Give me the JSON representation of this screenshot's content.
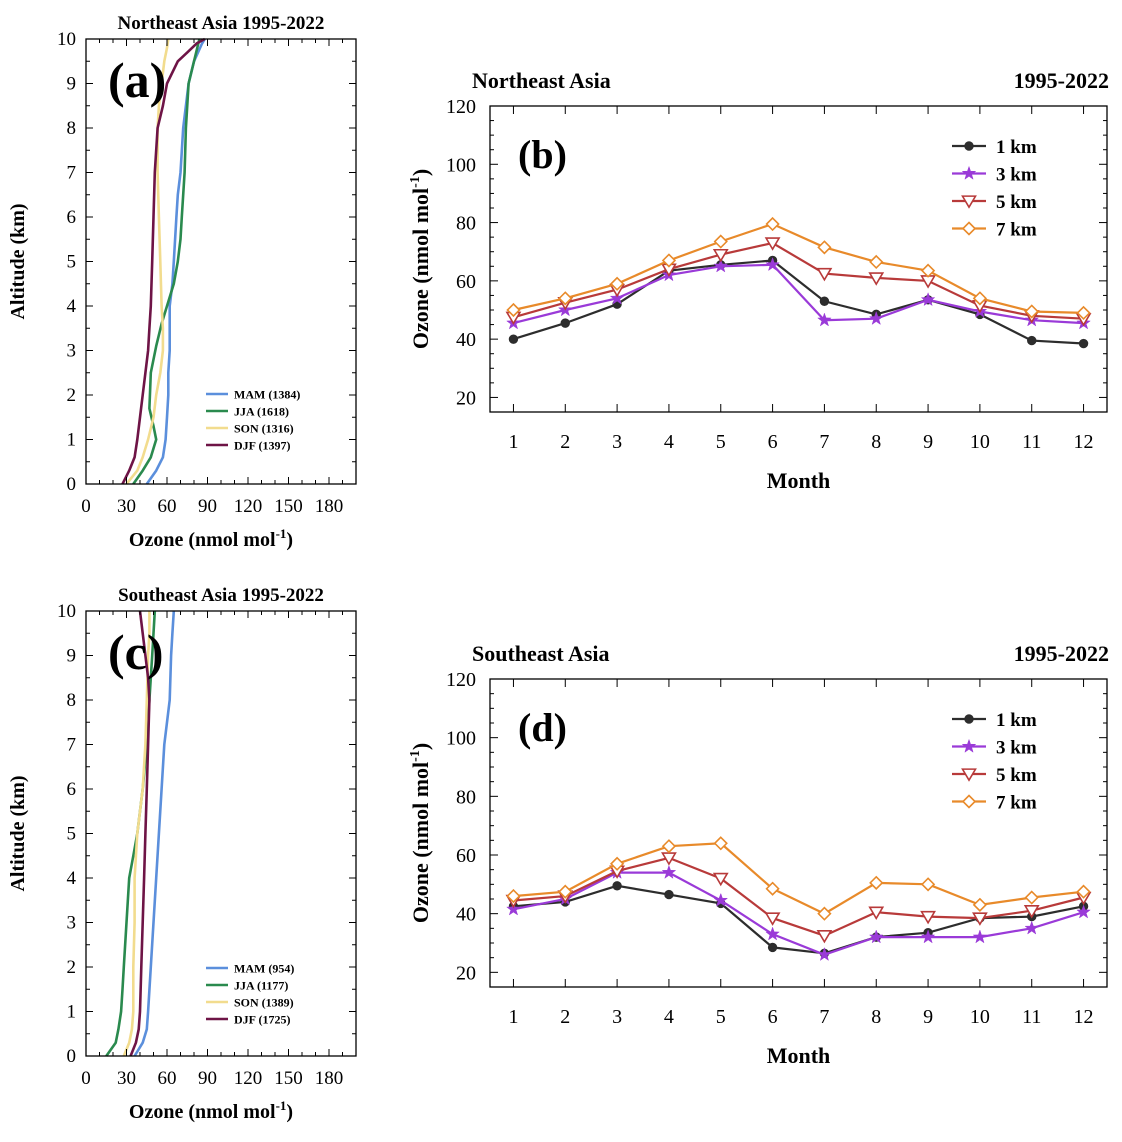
{
  "colors": {
    "MAM": "#5b8fdc",
    "JJA": "#2a8a4e",
    "SON": "#f2dc8e",
    "DJF": "#6e1446",
    "km1": "#2d2d2d",
    "km3": "#9a3ad8",
    "km5": "#b83a3a",
    "km7": "#e88a2a"
  },
  "chart_data": [
    {
      "id": "a",
      "type": "line",
      "panel_label": "(a)",
      "title": "Northeast Asia  1995-2022",
      "xlabel": "Ozone (nmol mol",
      "xlabel_sup": "-1",
      "xlabel_end": ")",
      "ylabel": "Altitude (km)",
      "xlim": [
        0,
        200
      ],
      "ylim": [
        0,
        10
      ],
      "xticks": [
        "0",
        "30",
        "60",
        "90",
        "120",
        "150",
        "180"
      ],
      "yticks": [
        "0",
        "1",
        "2",
        "3",
        "4",
        "5",
        "6",
        "7",
        "8",
        "9",
        "10"
      ],
      "legend_position": "bottom-right",
      "series": [
        {
          "key": "MAM",
          "name": "MAM (1384)",
          "x": [
            45,
            52,
            57,
            59,
            60,
            61,
            61,
            62,
            62,
            64,
            65,
            67,
            68,
            70,
            72,
            76,
            80,
            86,
            88
          ],
          "y": [
            0,
            0.3,
            0.6,
            1,
            1.5,
            2,
            2.5,
            3,
            4,
            4.5,
            5,
            6,
            6.5,
            7,
            8,
            9,
            9.5,
            9.9,
            10
          ]
        },
        {
          "key": "JJA",
          "name": "JJA (1618)",
          "x": [
            35,
            42,
            48,
            52,
            50,
            47,
            48,
            52,
            56,
            60,
            65,
            68,
            70,
            71,
            73,
            74,
            76,
            80,
            84
          ],
          "y": [
            0,
            0.3,
            0.6,
            1,
            1.3,
            1.7,
            2.5,
            3.1,
            3.6,
            4,
            4.5,
            5,
            5.5,
            6,
            7,
            8,
            9,
            9.5,
            10
          ]
        },
        {
          "key": "SON",
          "name": "SON (1316)",
          "x": [
            30,
            38,
            42,
            46,
            50,
            52,
            55,
            57,
            57,
            56,
            55,
            54,
            53,
            53,
            54,
            56,
            58,
            60,
            61
          ],
          "y": [
            0,
            0.3,
            0.6,
            1,
            1.5,
            2,
            2.5,
            3,
            3.5,
            4,
            5,
            6,
            7,
            8,
            8.5,
            9,
            9.5,
            9.8,
            10
          ]
        },
        {
          "key": "DJF",
          "name": "DJF (1397)",
          "x": [
            27,
            32,
            36,
            38,
            40,
            42,
            44,
            46,
            47,
            48,
            49,
            50,
            51,
            53,
            57,
            60,
            68,
            75,
            82,
            88
          ],
          "y": [
            0,
            0.3,
            0.6,
            1,
            1.5,
            2,
            2.5,
            3,
            3.5,
            4,
            5,
            6,
            7,
            8,
            8.5,
            9,
            9.5,
            9.7,
            9.9,
            10
          ]
        }
      ]
    },
    {
      "id": "c",
      "type": "line",
      "panel_label": "(c)",
      "title": "Southeast Asia  1995-2022",
      "xlabel": "Ozone (nmol mol",
      "xlabel_sup": "-1",
      "xlabel_end": ")",
      "ylabel": "Altitude (km)",
      "xlim": [
        0,
        200
      ],
      "ylim": [
        0,
        10
      ],
      "xticks": [
        "0",
        "30",
        "60",
        "90",
        "120",
        "150",
        "180"
      ],
      "yticks": [
        "0",
        "1",
        "2",
        "3",
        "4",
        "5",
        "6",
        "7",
        "8",
        "9",
        "10"
      ],
      "legend_position": "bottom-right",
      "series": [
        {
          "key": "MAM",
          "name": "MAM (954)",
          "x": [
            36,
            42,
            45,
            46,
            48,
            50,
            52,
            54,
            56,
            58,
            60,
            62,
            63,
            64,
            65
          ],
          "y": [
            0,
            0.3,
            0.6,
            1,
            2,
            3,
            4,
            5,
            6,
            7,
            7.5,
            8,
            9,
            9.5,
            10
          ]
        },
        {
          "key": "JJA",
          "name": "JJA (1177)",
          "x": [
            15,
            22,
            24,
            26,
            27,
            28,
            30,
            32,
            35,
            38,
            42,
            45,
            47,
            48,
            49,
            50,
            51
          ],
          "y": [
            0,
            0.3,
            0.6,
            1,
            1.5,
            2,
            3,
            4,
            4.5,
            5,
            6,
            7,
            8,
            8.5,
            9,
            9.5,
            10
          ]
        },
        {
          "key": "SON",
          "name": "SON (1389)",
          "x": [
            28,
            32,
            34,
            35,
            35,
            36,
            36,
            38,
            40,
            42,
            44,
            45,
            46,
            47,
            47
          ],
          "y": [
            0,
            0.3,
            0.6,
            1,
            2,
            3,
            4,
            5,
            5.5,
            6,
            7,
            8,
            9,
            9.5,
            10
          ]
        },
        {
          "key": "DJF",
          "name": "DJF (1725)",
          "x": [
            33,
            37,
            39,
            40,
            41,
            42,
            43,
            44,
            45,
            46,
            47,
            46,
            44,
            42,
            40
          ],
          "y": [
            0,
            0.3,
            0.6,
            1,
            2,
            3,
            4,
            5,
            6,
            7,
            8,
            8.5,
            9,
            9.5,
            10
          ]
        }
      ]
    },
    {
      "id": "b",
      "type": "line",
      "panel_label": "(b)",
      "title": "Northeast Asia",
      "title_right": "1995-2022",
      "xlabel": "Month",
      "ylabel": "Ozone (nmol mol",
      "ylabel_sup": "-1",
      "ylabel_end": ")",
      "categories": [
        "1",
        "2",
        "3",
        "4",
        "5",
        "6",
        "7",
        "8",
        "9",
        "10",
        "11",
        "12"
      ],
      "ylim": [
        15,
        120
      ],
      "yticks": [
        "20",
        "40",
        "60",
        "80",
        "100",
        "120"
      ],
      "legend_position": "top-right",
      "series": [
        {
          "key": "km1",
          "name": "1 km",
          "marker": "circle",
          "values": [
            40,
            45.5,
            52,
            63.5,
            65.5,
            67,
            53,
            48.5,
            53.5,
            48.5,
            39.5,
            38.5
          ]
        },
        {
          "key": "km3",
          "name": "3 km",
          "marker": "star",
          "values": [
            45.5,
            50,
            54,
            62,
            65,
            65.5,
            46.5,
            47,
            53.5,
            49.5,
            46.5,
            45.5
          ]
        },
        {
          "key": "km5",
          "name": "5 km",
          "marker": "triangle-down",
          "values": [
            47.5,
            52.5,
            57,
            64,
            69,
            73,
            62.5,
            61,
            60,
            51.5,
            48,
            47
          ]
        },
        {
          "key": "km7",
          "name": "7 km",
          "marker": "diamond",
          "values": [
            50,
            54,
            59,
            67,
            73.5,
            79.5,
            71.5,
            66.5,
            63.5,
            54,
            49.5,
            49
          ]
        }
      ]
    },
    {
      "id": "d",
      "type": "line",
      "panel_label": "(d)",
      "title": "Southeast Asia",
      "title_right": "1995-2022",
      "xlabel": "Month",
      "ylabel": "Ozone (nmol mol",
      "ylabel_sup": "-1",
      "ylabel_end": ")",
      "categories": [
        "1",
        "2",
        "3",
        "4",
        "5",
        "6",
        "7",
        "8",
        "9",
        "10",
        "11",
        "12"
      ],
      "ylim": [
        15,
        120
      ],
      "yticks": [
        "20",
        "40",
        "60",
        "80",
        "100",
        "120"
      ],
      "legend_position": "top-right",
      "series": [
        {
          "key": "km1",
          "name": "1 km",
          "marker": "circle",
          "values": [
            42.5,
            44,
            49.5,
            46.5,
            43.5,
            28.5,
            26.5,
            32,
            33.5,
            38.5,
            39,
            42.5
          ]
        },
        {
          "key": "km3",
          "name": "3 km",
          "marker": "star",
          "values": [
            41.5,
            45,
            54,
            54,
            44.5,
            33,
            26,
            32,
            32,
            32,
            35,
            40.5
          ]
        },
        {
          "key": "km5",
          "name": "5 km",
          "marker": "triangle-down",
          "values": [
            44.5,
            46,
            54.5,
            59,
            52,
            38.5,
            32.5,
            40.5,
            39,
            38.5,
            41,
            45.5
          ]
        },
        {
          "key": "km7",
          "name": "7 km",
          "marker": "diamond",
          "values": [
            46,
            47.5,
            57,
            63,
            64,
            48.5,
            40,
            50.5,
            50,
            43,
            45.5,
            47.5
          ]
        }
      ]
    }
  ]
}
